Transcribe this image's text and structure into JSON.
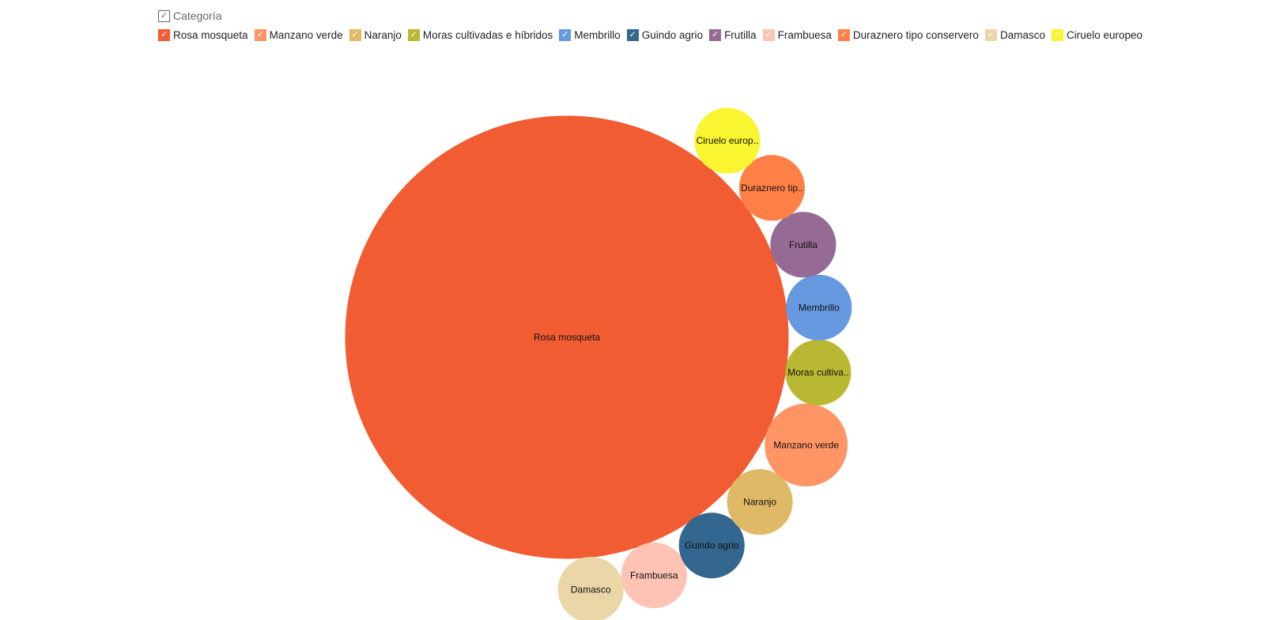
{
  "legend": {
    "title": "Categoría",
    "check_glyph": "✓"
  },
  "chart_data": {
    "type": "bubble",
    "title": "",
    "series": [
      {
        "name": "Rosa mosqueta",
        "label": "Rosa mosqueta",
        "color": "#F25C33",
        "value": 46.5
      },
      {
        "name": "Manzano verde",
        "label": "Manzano verde",
        "color": "#FF9565",
        "value": 1.6
      },
      {
        "name": "Naranjo",
        "label": "Naranjo",
        "color": "#E0B966",
        "value": 1.0
      },
      {
        "name": "Moras cultivadas e híbridos",
        "label": "Moras cultiva..",
        "color": "#B9B833",
        "value": 1.0
      },
      {
        "name": "Membrillo",
        "label": "Membrillo",
        "color": "#6699E0",
        "value": 1.0
      },
      {
        "name": "Guindo agrio",
        "label": "Guindo agrio",
        "color": "#33678F",
        "value": 1.0
      },
      {
        "name": "Frutilla",
        "label": "Frutilla",
        "color": "#956B95",
        "value": 1.0
      },
      {
        "name": "Frambuesa",
        "label": "Frambuesa",
        "color": "#FFC3B5",
        "value": 1.0
      },
      {
        "name": "Duraznero tipo conservero",
        "label": "Duraznero tip..",
        "color": "#FF8046",
        "value": 1.0
      },
      {
        "name": "Damasco",
        "label": "Damasco",
        "color": "#EAD6A6",
        "value": 1.0
      },
      {
        "name": "Ciruelo europeo",
        "label": "Ciruelo europ..",
        "color": "#F9F530",
        "value": 1.0
      }
    ],
    "legend_position": "top-left"
  }
}
